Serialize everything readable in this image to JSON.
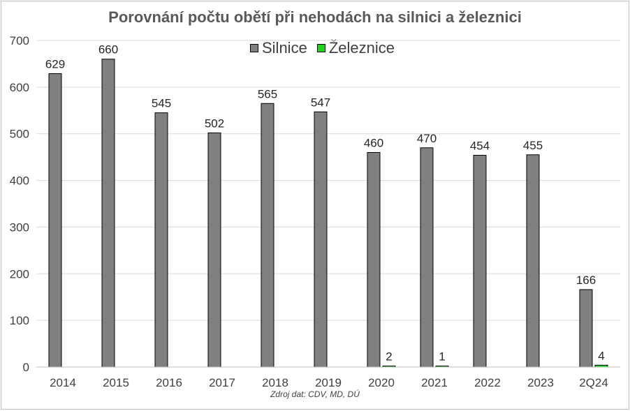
{
  "chart_data": {
    "type": "bar",
    "title": "Porovnání počtu obětí při nehodách na silnici a železnici",
    "categories": [
      "2014",
      "2015",
      "2016",
      "2017",
      "2018",
      "2019",
      "2020",
      "2021",
      "2022",
      "2023",
      "2Q24"
    ],
    "series": [
      {
        "name": "Silnice",
        "color": "#808080",
        "values": [
          629,
          660,
          545,
          502,
          565,
          547,
          460,
          470,
          454,
          455,
          166
        ],
        "labels": [
          "629",
          "660",
          "545",
          "502",
          "565",
          "547",
          "460",
          "470",
          "454",
          "455",
          "166"
        ]
      },
      {
        "name": "Železnice",
        "color": "#1fd31f",
        "values": [
          null,
          null,
          null,
          null,
          null,
          null,
          2,
          1,
          null,
          null,
          4
        ],
        "labels": [
          "",
          "",
          "",
          "",
          "",
          "",
          "2",
          "1",
          "",
          "",
          "4"
        ]
      }
    ],
    "ylim": [
      0,
      700
    ],
    "yticks": [
      "0",
      "100",
      "200",
      "300",
      "400",
      "500",
      "600",
      "700"
    ],
    "grid": true,
    "legend": "top-center",
    "xlabel": "",
    "ylabel": ""
  },
  "source_note": "Zdroj dat: CDV, MD, DÚ"
}
